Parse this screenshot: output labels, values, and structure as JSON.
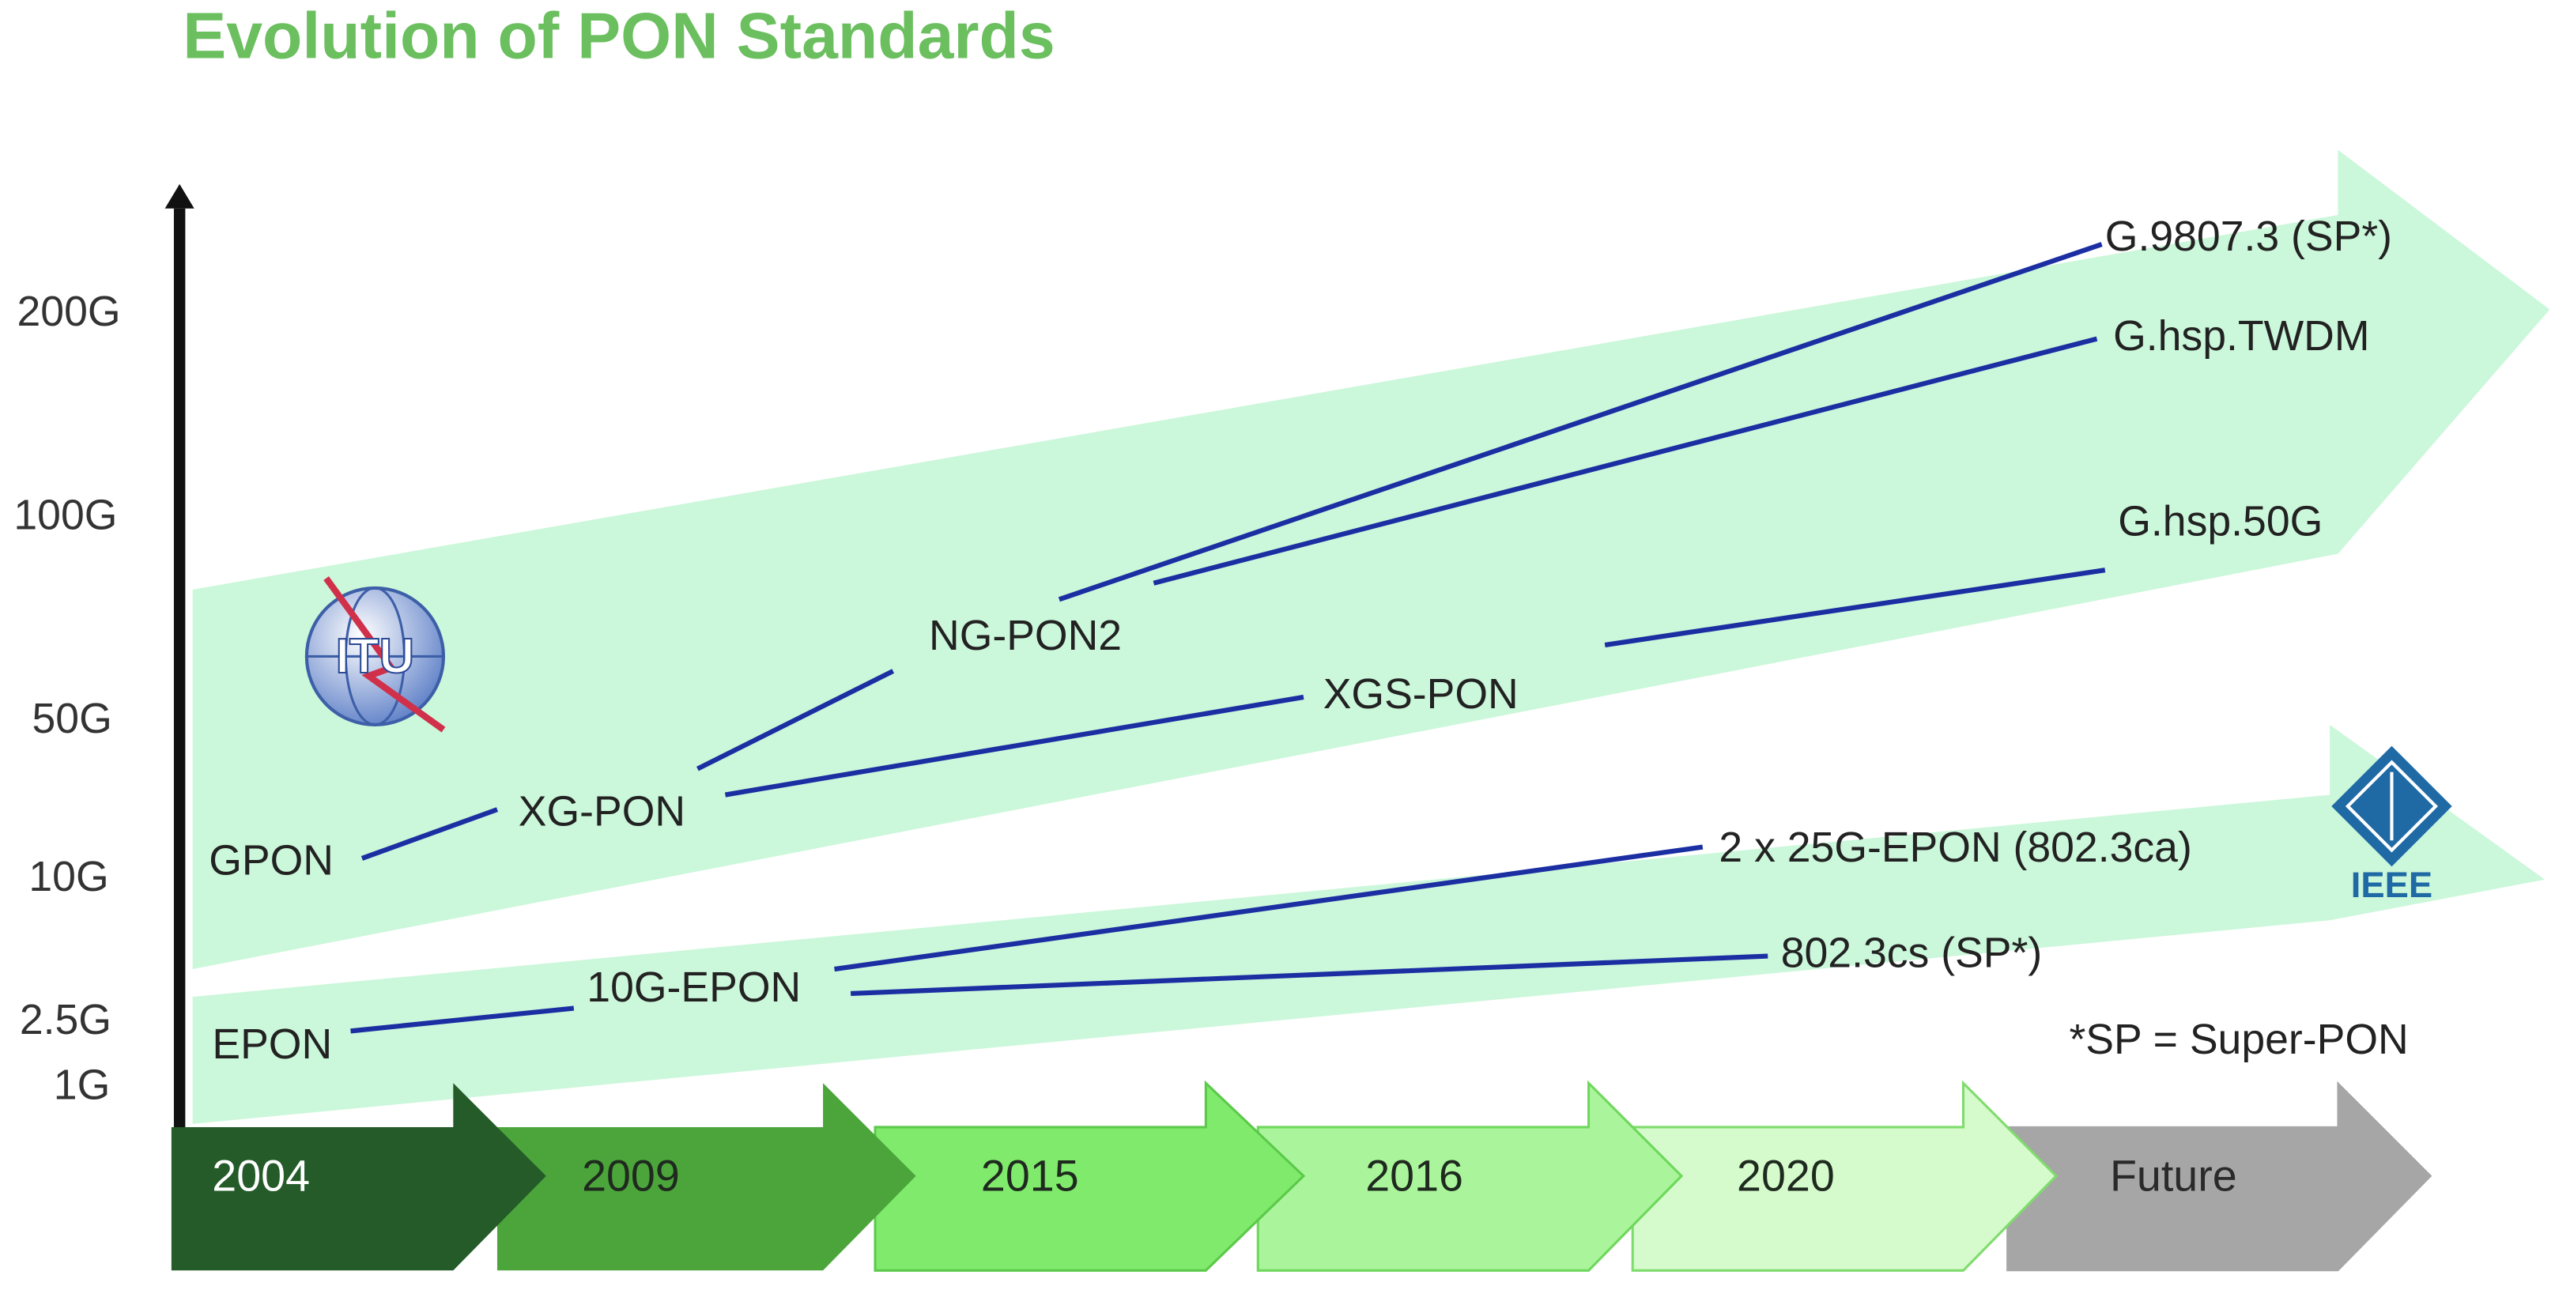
{
  "title": "Evolution of PON Standards",
  "y_axis_labels": [
    "200G",
    "100G",
    "50G",
    "10G",
    "2.5G",
    "1G"
  ],
  "timeline": [
    "2004",
    "2009",
    "2015",
    "2016",
    "2020",
    "Future"
  ],
  "itu": {
    "logo": "ITU",
    "standards": [
      "GPON",
      "XG-PON",
      "NG-PON2",
      "XGS-PON",
      "G.9807.3 (SP*)",
      "G.hsp.TWDM",
      "G.hsp.50G"
    ]
  },
  "ieee": {
    "logo": "IEEE",
    "standards": [
      "EPON",
      "10G-EPON",
      "2 x 25G-EPON (802.3ca)",
      "802.3cs (SP*)"
    ]
  },
  "footnote": "*SP = Super-PON"
}
